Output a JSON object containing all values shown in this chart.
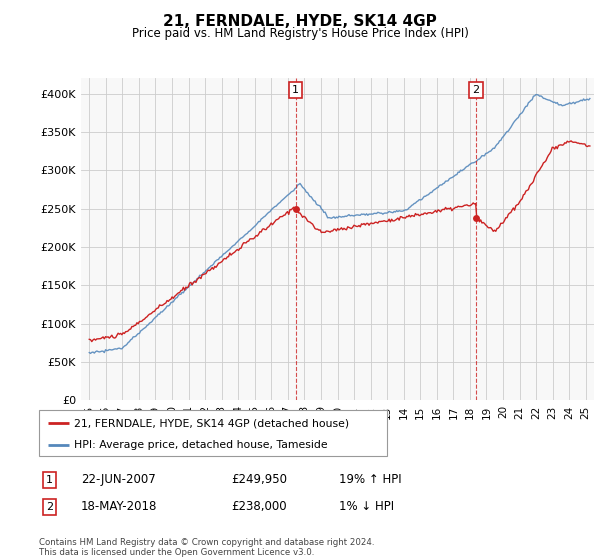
{
  "title": "21, FERNDALE, HYDE, SK14 4GP",
  "subtitle": "Price paid vs. HM Land Registry's House Price Index (HPI)",
  "footer": "Contains HM Land Registry data © Crown copyright and database right 2024.\nThis data is licensed under the Open Government Licence v3.0.",
  "legend_line1": "21, FERNDALE, HYDE, SK14 4GP (detached house)",
  "legend_line2": "HPI: Average price, detached house, Tameside",
  "sale1_label": "1",
  "sale1_date": "22-JUN-2007",
  "sale1_price": "£249,950",
  "sale1_hpi": "19% ↑ HPI",
  "sale2_label": "2",
  "sale2_date": "18-MAY-2018",
  "sale2_price": "£238,000",
  "sale2_hpi": "1% ↓ HPI",
  "hpi_color": "#5588bb",
  "price_color": "#cc2222",
  "marker1_x": 2007.47,
  "marker1_y": 249950,
  "marker2_x": 2018.37,
  "marker2_y": 238000,
  "ylim": [
    0,
    420000
  ],
  "xlim": [
    1994.5,
    2025.5
  ],
  "yticks": [
    0,
    50000,
    100000,
    150000,
    200000,
    250000,
    300000,
    350000,
    400000
  ],
  "ytick_labels": [
    "£0",
    "£50K",
    "£100K",
    "£150K",
    "£200K",
    "£250K",
    "£300K",
    "£350K",
    "£400K"
  ],
  "xticks": [
    1995,
    1996,
    1997,
    1998,
    1999,
    2000,
    2001,
    2002,
    2003,
    2004,
    2005,
    2006,
    2007,
    2008,
    2009,
    2010,
    2011,
    2012,
    2013,
    2014,
    2015,
    2016,
    2017,
    2018,
    2019,
    2020,
    2021,
    2022,
    2023,
    2024,
    2025
  ],
  "bg_color": "#f0f0f0"
}
